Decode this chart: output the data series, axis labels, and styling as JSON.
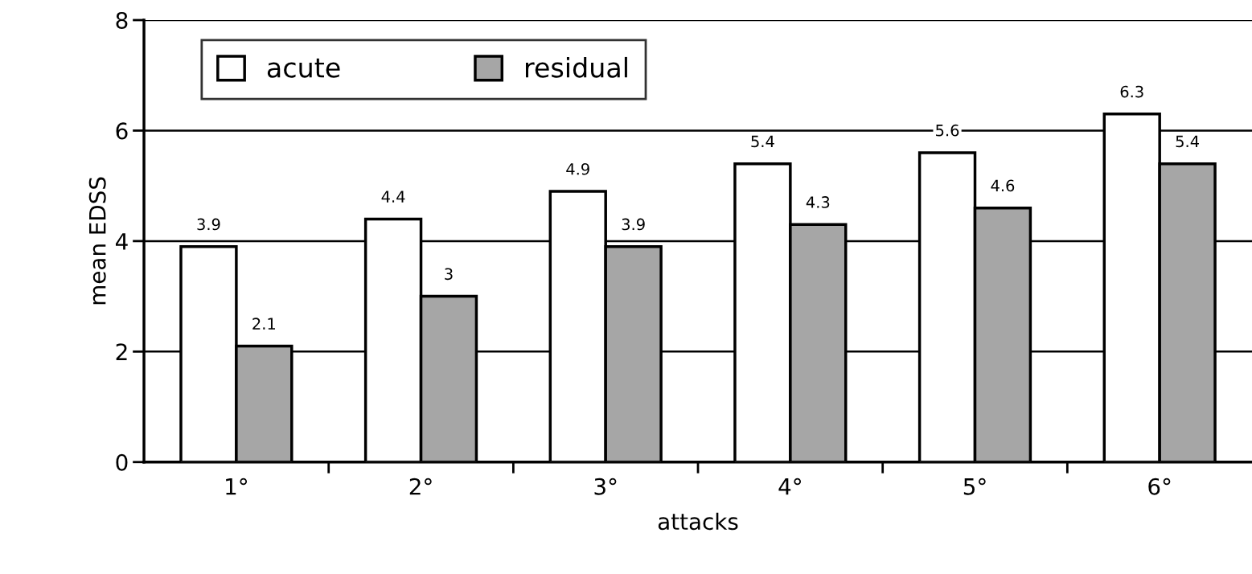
{
  "chart_data": {
    "type": "bar",
    "xlabel": "attacks",
    "ylabel": "mean EDSS",
    "categories": [
      "1°",
      "2°",
      "3°",
      "4°",
      "5°",
      "6°"
    ],
    "series": [
      {
        "name": "acute",
        "color": "#ffffff",
        "values": [
          3.9,
          4.4,
          4.9,
          5.4,
          5.6,
          6.3
        ]
      },
      {
        "name": "residual",
        "color": "#a6a6a6",
        "values": [
          2.1,
          3,
          3.9,
          4.3,
          4.6,
          5.4
        ]
      }
    ],
    "ylim": [
      0,
      8
    ],
    "yticks": [
      0,
      2,
      4,
      6,
      8
    ],
    "grid": "y",
    "legend": "top left",
    "data_labels": true
  }
}
